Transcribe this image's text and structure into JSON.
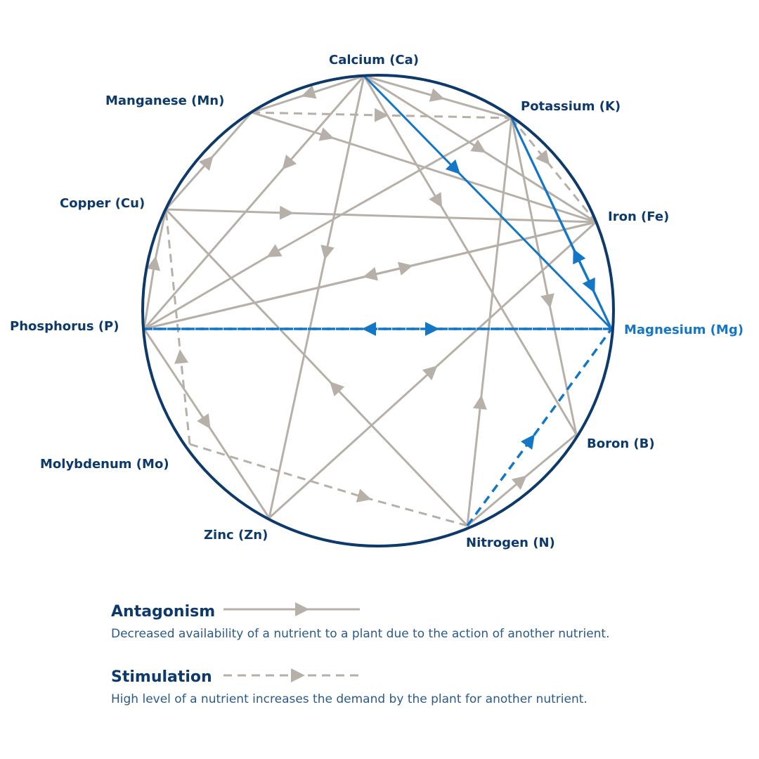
{
  "nodes": [
    {
      "label": "Calcium (Ca)"
    },
    {
      "label": "Manganese (Mn)"
    },
    {
      "label": "Potassium (K)"
    },
    {
      "label": "Copper (Cu)"
    },
    {
      "label": "Iron (Fe)"
    },
    {
      "label": "Phosphorus (P)"
    },
    {
      "label": "Magnesium (Mg)"
    },
    {
      "label": "Molybdenum (Mo)"
    },
    {
      "label": "Boron (B)"
    },
    {
      "label": "Zinc (Zn)"
    },
    {
      "label": "Nitrogen (N)"
    }
  ],
  "legend": [
    {
      "title": "Antagonism",
      "description": "Decreased availability of a nutrient to a plant due to the action of another nutrient."
    },
    {
      "title": "Stimulation",
      "description": "High level of a nutrient increases the demand by the plant for another nutrient."
    }
  ]
}
